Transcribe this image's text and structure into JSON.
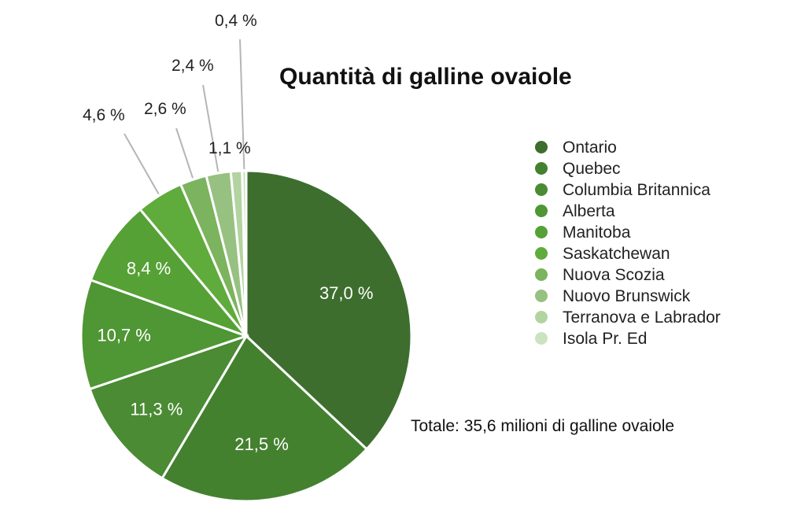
{
  "chart_data": {
    "type": "pie",
    "title": "Quantità di galline ovaiole",
    "total_note": "Totale: 35,6 milioni di galline ovaiole",
    "legend_position": "right",
    "slices": [
      {
        "name": "Ontario",
        "value": 37.0,
        "label": "37,0 %",
        "color": "#3d6e2e"
      },
      {
        "name": "Quebec",
        "value": 21.5,
        "label": "21,5 %",
        "color": "#44812f"
      },
      {
        "name": "Columbia Britannica",
        "value": 11.3,
        "label": "11,3 %",
        "color": "#4a8b33"
      },
      {
        "name": "Alberta",
        "value": 10.7,
        "label": "10,7 %",
        "color": "#4f9634"
      },
      {
        "name": "Manitoba",
        "value": 8.4,
        "label": "8,4 %",
        "color": "#56a136"
      },
      {
        "name": "Saskatchewan",
        "value": 4.6,
        "label": "4,6 %",
        "color": "#5fab3c"
      },
      {
        "name": "Nuova Scozia",
        "value": 2.6,
        "label": "2,6 %",
        "color": "#7cb35e"
      },
      {
        "name": "Nuovo Brunswick",
        "value": 2.4,
        "label": "2,4 %",
        "color": "#97c181"
      },
      {
        "name": "Terranova e Labrador",
        "value": 1.1,
        "label": "1,1 %",
        "color": "#b2d4a0"
      },
      {
        "name": "Isola Pr. Ed",
        "value": 0.4,
        "label": "0,4 %",
        "color": "#cce2c1"
      }
    ]
  }
}
